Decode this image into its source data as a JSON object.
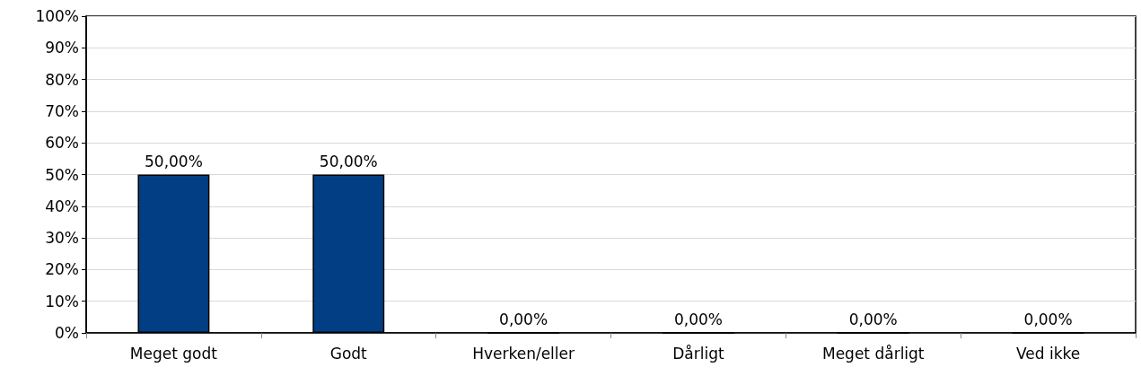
{
  "chart_data": {
    "type": "bar",
    "categories": [
      "Meget godt",
      "Godt",
      "Hverken/eller",
      "Dårligt",
      "Meget dårligt",
      "Ved ikke"
    ],
    "values": [
      50,
      50,
      0,
      0,
      0,
      0
    ],
    "color": "#023e84",
    "value_labels": [
      "50,00%",
      "50,00%",
      "0,00%",
      "0,00%",
      "0,00%",
      "0,00%"
    ],
    "ylim": [
      0,
      100
    ],
    "yticks": [
      {
        "value": 0,
        "label": "0%"
      },
      {
        "value": 10,
        "label": "10%"
      },
      {
        "value": 20,
        "label": "20%"
      },
      {
        "value": 30,
        "label": "30%"
      },
      {
        "value": 40,
        "label": "40%"
      },
      {
        "value": 50,
        "label": "50%"
      },
      {
        "value": 60,
        "label": "60%"
      },
      {
        "value": 70,
        "label": "70%"
      },
      {
        "value": 80,
        "label": "80%"
      },
      {
        "value": 90,
        "label": "90%"
      },
      {
        "value": 100,
        "label": "100%"
      }
    ],
    "grid": "y"
  }
}
